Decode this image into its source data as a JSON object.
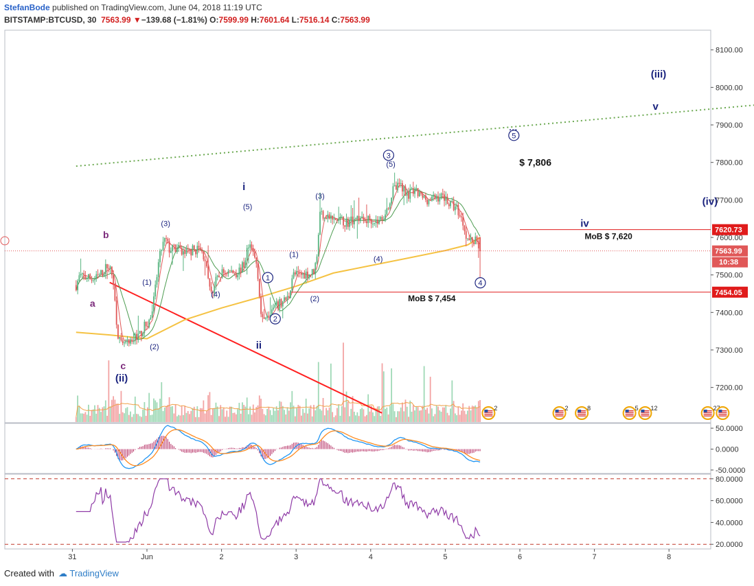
{
  "header": {
    "author": "StefanBode",
    "published": " published on TradingView.com, June 04, 2018 11:19 UTC",
    "symbol": "BITSTAMP:BTCUSD, 30",
    "last": "7563.99",
    "change_arrow": "▼",
    "change": "−139.68 (−1.81%)",
    "o_label": "O:",
    "o": "7599.99",
    "h_label": "H:",
    "h": "7601.64",
    "l_label": "L:",
    "l": "7516.14",
    "c_label": "C:",
    "c": "7563.99"
  },
  "footer": {
    "created_with": "Created with",
    "brand": "TradingView"
  },
  "colors": {
    "up": "#56b37f",
    "down": "#e05858",
    "ma_yellow": "#f5c242",
    "ma_red": "#e05858",
    "ma_green": "#4b9b4f",
    "wave_blue": "#1a237e",
    "wave_purple": "#7b2a7b",
    "level_red": "#e01b1b",
    "trend_red": "#ff2020",
    "dotted_green": "#6aa84f",
    "macd_blue": "#2196f3",
    "macd_orange": "#ff8a1e",
    "hist": "#b3265e",
    "rsi": "#8e3aa6"
  },
  "chart_data": [
    {
      "type": "candlestick",
      "symbol": "BITSTAMP:BTCUSD",
      "interval": "30",
      "y_axis": {
        "ticks": [
          "8100.00",
          "8000.00",
          "7900.00",
          "7800.00",
          "7700.00",
          "7600.00",
          "7500.00",
          "7400.00",
          "7300.00",
          "7200.00"
        ],
        "ylim": [
          7132,
          8150
        ]
      },
      "x_axis": {
        "ticks": [
          "31",
          "Jun",
          "2",
          "3",
          "4",
          "5",
          "6",
          "7",
          "8"
        ]
      },
      "price_labels": [
        {
          "value": 7620.73,
          "text": "7620.73",
          "color": "#e01b1b"
        },
        {
          "value": 7563.99,
          "text": "7563.99",
          "color": "#e05858"
        },
        {
          "value": 7454.05,
          "text": "7454.05",
          "color": "#e01b1b"
        }
      ],
      "countdown": "10:38",
      "horizontal_levels": [
        {
          "value": 7620.73,
          "label": "MoB $ 7,620"
        },
        {
          "value": 7454.05,
          "label": "MoB $ 7,454"
        }
      ],
      "target_label": "$ 7,806",
      "waves": [
        {
          "text": "b",
          "d": -0.55,
          "v": 7598,
          "style": "purple-bold"
        },
        {
          "text": "a",
          "d": -0.73,
          "v": 7415,
          "style": "purple-bold"
        },
        {
          "text": "c",
          "d": -0.32,
          "v": 7249,
          "style": "purple-bold"
        },
        {
          "text": "(ii)",
          "d": -0.34,
          "v": 7216,
          "style": "blue-bold"
        },
        {
          "text": "(1)",
          "d": 0.0,
          "v": 7474,
          "style": "blue"
        },
        {
          "text": "(2)",
          "d": 0.1,
          "v": 7302,
          "style": "blue"
        },
        {
          "text": "(3)",
          "d": 0.25,
          "v": 7630,
          "style": "blue"
        },
        {
          "text": "(4)",
          "d": 0.92,
          "v": 7442,
          "style": "blue"
        },
        {
          "text": "(5)",
          "d": 1.35,
          "v": 7675,
          "style": "blue"
        },
        {
          "text": "i",
          "d": 1.3,
          "v": 7726,
          "style": "blue-bold"
        },
        {
          "text": "ii",
          "d": 1.5,
          "v": 7304,
          "style": "blue-bold"
        },
        {
          "text": "(1)",
          "d": 1.97,
          "v": 7548,
          "style": "blue"
        },
        {
          "text": "(2)",
          "d": 2.25,
          "v": 7430,
          "style": "blue"
        },
        {
          "text": "(3)",
          "d": 2.32,
          "v": 7703,
          "style": "blue"
        },
        {
          "text": "(4)",
          "d": 3.1,
          "v": 7536,
          "style": "blue"
        },
        {
          "text": "(5)",
          "d": 3.27,
          "v": 7788,
          "style": "blue"
        },
        {
          "text": "iii",
          "d": 4.91,
          "v": 7868,
          "style": "blue-bold"
        },
        {
          "text": "iv",
          "d": 5.87,
          "v": 7628,
          "style": "blue-bold"
        },
        {
          "text": "v",
          "d": 6.82,
          "v": 7940,
          "style": "blue-bold"
        },
        {
          "text": "(iii)",
          "d": 6.86,
          "v": 8026,
          "style": "blue-bold"
        },
        {
          "text": "(iv)",
          "d": 7.55,
          "v": 7687,
          "style": "blue-bold"
        }
      ],
      "circled_waves": [
        {
          "text": "1",
          "d": 1.62,
          "v": 7493
        },
        {
          "text": "2",
          "d": 1.72,
          "v": 7383
        },
        {
          "text": "3",
          "d": 3.24,
          "v": 7819
        },
        {
          "text": "4",
          "d": 4.47,
          "v": 7479
        },
        {
          "text": "5",
          "d": 4.92,
          "v": 7872
        }
      ],
      "event_markers": [
        {
          "d": 4.58,
          "text": "2"
        },
        {
          "d": 5.53,
          "text": "2"
        },
        {
          "d": 5.83,
          "text": "8"
        },
        {
          "d": 6.47,
          "text": "5"
        },
        {
          "d": 6.68,
          "text": "12"
        },
        {
          "d": 7.52,
          "text": "27"
        },
        {
          "d": 7.72,
          "text": ""
        }
      ],
      "close_path": [
        [
          -0.95,
          7473
        ],
        [
          -0.9,
          7498
        ],
        [
          -0.8,
          7492
        ],
        [
          -0.7,
          7488
        ],
        [
          -0.6,
          7505
        ],
        [
          -0.52,
          7528
        ],
        [
          -0.45,
          7488
        ],
        [
          -0.42,
          7400
        ],
        [
          -0.38,
          7330
        ],
        [
          -0.33,
          7305
        ],
        [
          -0.3,
          7320
        ],
        [
          -0.25,
          7312
        ],
        [
          -0.2,
          7318
        ],
        [
          -0.15,
          7340
        ],
        [
          -0.1,
          7338
        ],
        [
          -0.05,
          7358
        ],
        [
          0.0,
          7368
        ],
        [
          0.05,
          7385
        ],
        [
          0.1,
          7440
        ],
        [
          0.15,
          7525
        ],
        [
          0.2,
          7575
        ],
        [
          0.25,
          7595
        ],
        [
          0.3,
          7568
        ],
        [
          0.4,
          7570
        ],
        [
          0.5,
          7558
        ],
        [
          0.6,
          7565
        ],
        [
          0.7,
          7570
        ],
        [
          0.78,
          7545
        ],
        [
          0.82,
          7480
        ],
        [
          0.88,
          7455
        ],
        [
          0.92,
          7480
        ],
        [
          1.0,
          7505
        ],
        [
          1.1,
          7510
        ],
        [
          1.2,
          7505
        ],
        [
          1.3,
          7525
        ],
        [
          1.35,
          7575
        ],
        [
          1.42,
          7560
        ],
        [
          1.47,
          7530
        ],
        [
          1.5,
          7480
        ],
        [
          1.52,
          7405
        ],
        [
          1.55,
          7375
        ],
        [
          1.6,
          7400
        ],
        [
          1.7,
          7410
        ],
        [
          1.8,
          7425
        ],
        [
          1.9,
          7440
        ],
        [
          1.95,
          7500
        ],
        [
          2.05,
          7500
        ],
        [
          2.15,
          7505
        ],
        [
          2.2,
          7502
        ],
        [
          2.25,
          7515
        ],
        [
          2.28,
          7560
        ],
        [
          2.32,
          7665
        ],
        [
          2.4,
          7660
        ],
        [
          2.5,
          7645
        ],
        [
          2.6,
          7645
        ],
        [
          2.7,
          7640
        ],
        [
          2.8,
          7655
        ],
        [
          2.9,
          7645
        ],
        [
          3.0,
          7650
        ],
        [
          3.1,
          7640
        ],
        [
          3.2,
          7665
        ],
        [
          3.3,
          7725
        ],
        [
          3.4,
          7740
        ],
        [
          3.5,
          7715
        ],
        [
          3.6,
          7720
        ],
        [
          3.7,
          7705
        ],
        [
          3.8,
          7700
        ],
        [
          3.9,
          7708
        ],
        [
          4.0,
          7710
        ],
        [
          4.05,
          7690
        ],
        [
          4.15,
          7680
        ],
        [
          4.23,
          7645
        ],
        [
          4.3,
          7595
        ],
        [
          4.38,
          7590
        ],
        [
          4.43,
          7598
        ],
        [
          4.47,
          7563
        ]
      ],
      "ma_yellow": [
        [
          -0.95,
          7347
        ],
        [
          -0.5,
          7340
        ],
        [
          0.0,
          7330
        ],
        [
          0.5,
          7380
        ],
        [
          1.0,
          7412
        ],
        [
          1.5,
          7440
        ],
        [
          2.0,
          7470
        ],
        [
          2.5,
          7505
        ],
        [
          3.0,
          7525
        ],
        [
          3.5,
          7545
        ],
        [
          4.0,
          7565
        ],
        [
          4.3,
          7580
        ],
        [
          4.47,
          7600
        ]
      ],
      "volume_ylim": [
        0,
        320
      ],
      "trendline_red": {
        "from": [
          -0.5,
          7480
        ],
        "to": [
          3.15,
          7132
        ]
      },
      "trendline_green_dotted": {
        "from": [
          -0.95,
          7790
        ],
        "to": [
          8.55,
          7960
        ]
      },
      "x_range_days": [
        -0.95,
        8.55
      ]
    },
    {
      "type": "macd",
      "ticks": [
        "50.0000",
        "0.0000",
        "-50.0000"
      ],
      "ylim": [
        -55,
        55
      ]
    },
    {
      "type": "rsi",
      "ticks": [
        "80.0000",
        "60.0000",
        "40.0000",
        "20.0000"
      ],
      "ylim": [
        17,
        83
      ],
      "bands": [
        80,
        20
      ]
    }
  ]
}
